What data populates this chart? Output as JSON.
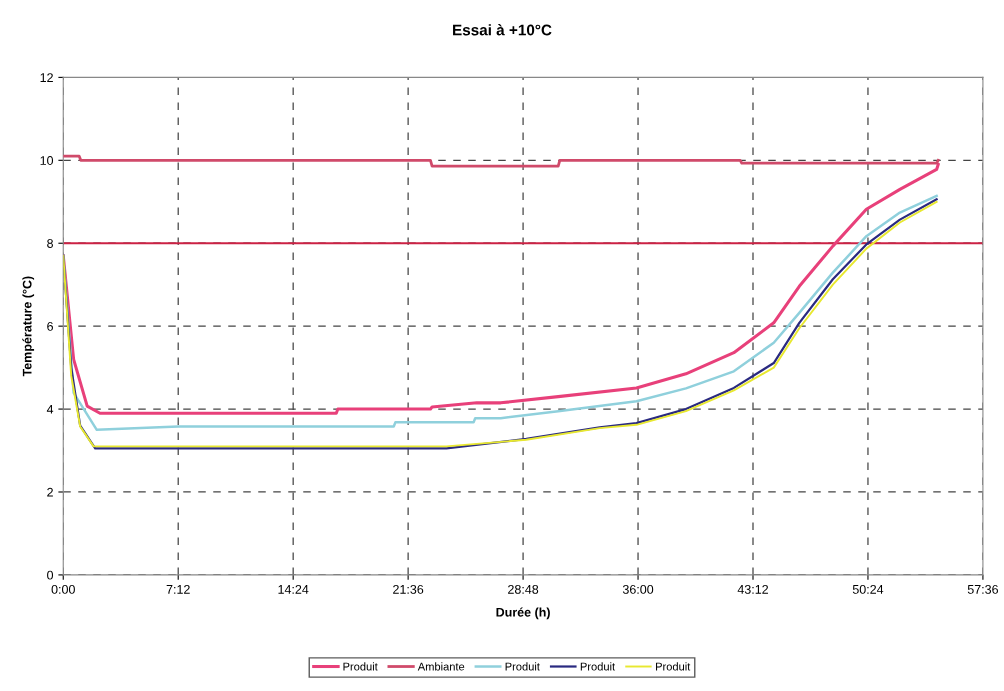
{
  "chart_data": {
    "type": "line",
    "title": "Essai à +10°C",
    "xlabel": "Durée (h)",
    "ylabel": "Température (°C)",
    "xlim": [
      0,
      57.6
    ],
    "ylim": [
      0,
      12
    ],
    "xticks": [
      {
        "value": 0,
        "label": "0:00"
      },
      {
        "value": 7.2,
        "label": "7:12"
      },
      {
        "value": 14.4,
        "label": "14:24"
      },
      {
        "value": 21.6,
        "label": "21:36"
      },
      {
        "value": 28.8,
        "label": "28:48"
      },
      {
        "value": 36,
        "label": "36:00"
      },
      {
        "value": 43.2,
        "label": "43:12"
      },
      {
        "value": 50.4,
        "label": "50:24"
      },
      {
        "value": 57.6,
        "label": "57:36"
      }
    ],
    "yticks": [
      0,
      2,
      4,
      6,
      8,
      10,
      12
    ],
    "grid": true,
    "legend": "bottom",
    "marker": "none",
    "line_style": "solid",
    "ref_lines": [
      {
        "axis": "y",
        "value": 8,
        "label": null,
        "color": "#cc2244"
      }
    ],
    "series": [
      {
        "name": "Produit",
        "color": "#e8407a",
        "x": [
          0,
          0.65,
          1.5,
          2.3,
          17.1,
          17.2,
          23,
          23.1,
          25.9,
          27.4,
          31,
          35.9,
          39,
          42,
          44.5,
          46.1,
          48.2,
          50.3,
          52.4,
          54.7,
          54.8
        ],
        "values": [
          7.7,
          5.2,
          4.07,
          3.9,
          3.9,
          4.0,
          4.0,
          4.05,
          4.15,
          4.15,
          4.3,
          4.51,
          4.85,
          5.36,
          6.08,
          6.96,
          7.93,
          8.82,
          9.3,
          9.78,
          9.9
        ]
      },
      {
        "name": "Ambiante",
        "color": "#d04a6a",
        "x": [
          0,
          1,
          1.1,
          23,
          23.1,
          31,
          31.1,
          42.4,
          42.5,
          54.7,
          54.8
        ],
        "values": [
          10.1,
          10.1,
          10.0,
          10.0,
          9.86,
          9.86,
          10.0,
          10.0,
          9.93,
          9.93,
          10.0
        ]
      },
      {
        "name": "Produit",
        "color": "#8fd0dc",
        "x": [
          0,
          0.65,
          2.1,
          7.2,
          20.7,
          20.8,
          25.7,
          25.8,
          27.4,
          31,
          35.9,
          39,
          42,
          44.5,
          46.1,
          48.2,
          50.3,
          52.4,
          54.7
        ],
        "values": [
          7.7,
          4.39,
          3.5,
          3.58,
          3.58,
          3.68,
          3.68,
          3.78,
          3.78,
          3.95,
          4.19,
          4.5,
          4.91,
          5.6,
          6.32,
          7.29,
          8.17,
          8.74,
          9.14
        ]
      },
      {
        "name": "Produit",
        "color": "#2a2a80",
        "x": [
          0,
          0.5,
          1.06,
          2.0,
          24,
          29,
          33.6,
          35.9,
          39,
          42,
          44.5,
          46.1,
          48.2,
          50.3,
          52.4,
          54.7
        ],
        "values": [
          7.7,
          5.0,
          3.6,
          3.05,
          3.05,
          3.28,
          3.56,
          3.66,
          4.0,
          4.51,
          5.11,
          6.08,
          7.13,
          7.97,
          8.57,
          9.06
        ]
      },
      {
        "name": "Produit",
        "color": "#e8e830",
        "x": [
          0,
          0.5,
          1.06,
          1.9,
          24,
          29,
          33.6,
          35.9,
          39,
          42,
          44.5,
          46.1,
          48.2,
          50.3,
          52.4,
          54.7
        ],
        "values": [
          7.7,
          4.8,
          3.58,
          3.1,
          3.1,
          3.26,
          3.54,
          3.62,
          3.95,
          4.45,
          5.0,
          5.95,
          7.0,
          7.87,
          8.5,
          9.0
        ]
      }
    ]
  }
}
